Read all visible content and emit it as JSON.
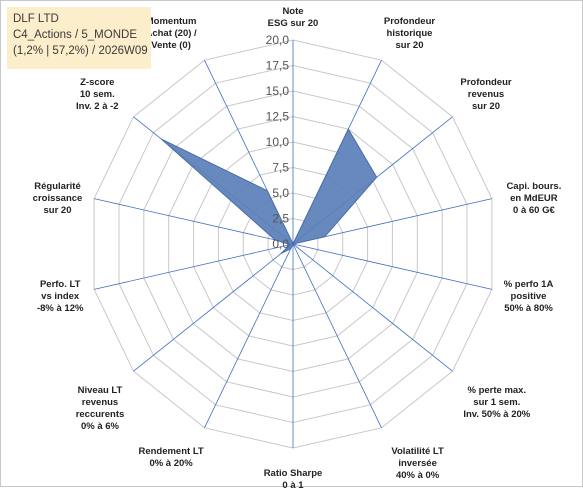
{
  "header": {
    "line1": "DLF LTD",
    "line2": "C4_Actions / 5_MONDE",
    "line3": "(1,2% | 57,2%) / 2026W09"
  },
  "colors": {
    "fill": "#5b7fb8",
    "stroke": "#4a6ea9",
    "grid": "#c8c8c8",
    "spoke": "#3f6fc2"
  },
  "chart_data": {
    "type": "radar",
    "rmin": 0,
    "rmax": 20,
    "ticks": [
      "0,0",
      "2,5",
      "5,0",
      "7,5",
      "10,0",
      "12,5",
      "15,0",
      "17,5",
      "20,0"
    ],
    "axes": [
      [
        "Note",
        "ESG sur 20"
      ],
      [
        "Profondeur",
        "historique",
        "sur 20"
      ],
      [
        "Profondeur",
        "revenus",
        "sur 20"
      ],
      [
        "Capi. bours.",
        "en MdEUR",
        "0 à 60 G€"
      ],
      [
        "% perfo 1A",
        "positive",
        "50% à 80%"
      ],
      [
        "% perte max.",
        "sur 1 sem.",
        "Inv. 50% à 20%"
      ],
      [
        "Volatilité LT",
        "inversée",
        "40% à 0%"
      ],
      [
        "Ratio Sharpe",
        "0 à 1"
      ],
      [
        "Rendement LT",
        "0% à 20%"
      ],
      [
        "Niveau LT",
        "revenus",
        "reccurents",
        "0% à 6%"
      ],
      [
        "Perfo. LT",
        "vs index",
        "-8% à 12%"
      ],
      [
        "Régularité",
        "croissance",
        "sur 20"
      ],
      [
        "Z-score",
        "10 sem.",
        "Inv. 2 à -2"
      ],
      [
        "Momentum",
        "Achat (20) /",
        "Vente (0)"
      ]
    ],
    "values": [
      0,
      12.5,
      10.5,
      3.2,
      0,
      0,
      0,
      0,
      0.5,
      1.5,
      0.3,
      1.8,
      16.5,
      5.8
    ]
  }
}
